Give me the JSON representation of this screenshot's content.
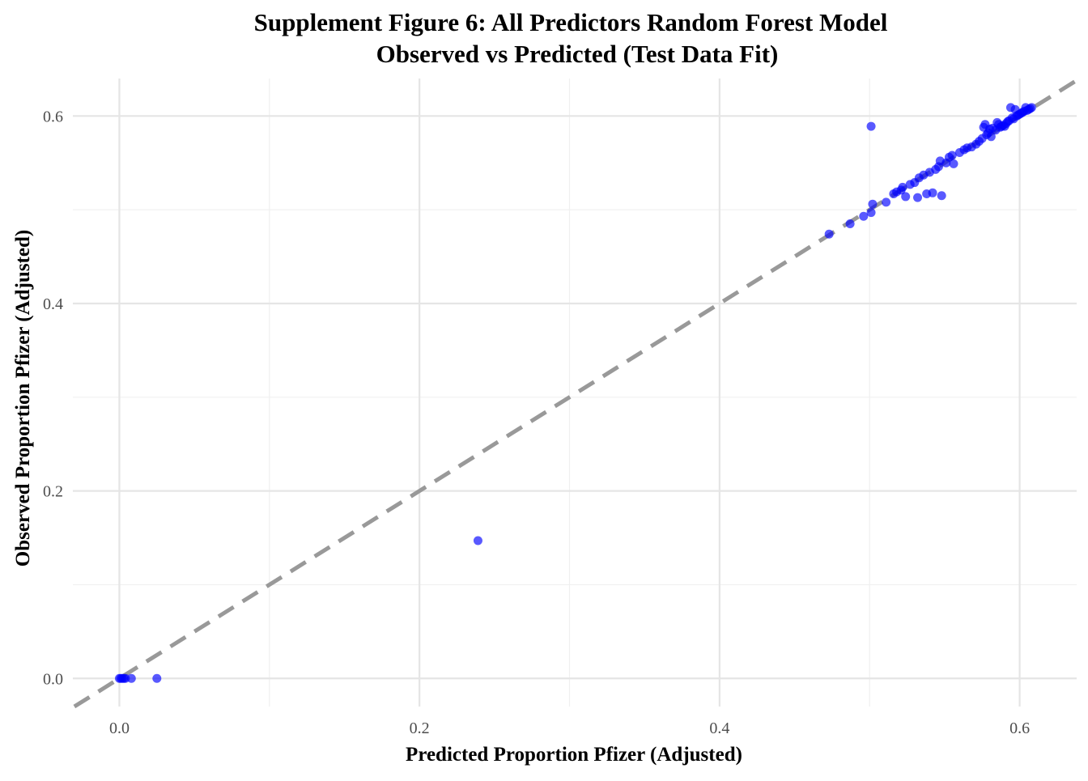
{
  "colors": {
    "points": "#0000FF",
    "reference_line": "#999999",
    "grid_major": "#e5e5e5",
    "grid_minor": "#f0f0f0",
    "background": "#ffffff"
  },
  "chart_data": {
    "type": "scatter",
    "title": "Supplement Figure 6: All Predictors Random Forest Model",
    "subtitle": "Observed vs Predicted (Test Data Fit)",
    "xlabel": "Predicted Proportion Pfizer (Adjusted)",
    "ylabel": "Observed Proportion Pfizer (Adjusted)",
    "xlim": [
      -0.031,
      0.638
    ],
    "ylim": [
      -0.03,
      0.64
    ],
    "x_ticks": [
      0.0,
      0.2,
      0.4,
      0.6
    ],
    "y_ticks": [
      0.0,
      0.2,
      0.4,
      0.6
    ],
    "x_tick_labels": [
      "0.0",
      "0.2",
      "0.4",
      "0.6"
    ],
    "y_tick_labels": [
      "0.0",
      "0.2",
      "0.4",
      "0.6"
    ],
    "grid": true,
    "reference_line": {
      "type": "identity",
      "style": "dashed",
      "slope": 1,
      "intercept": 0
    },
    "series": [
      {
        "points": [
          [
            0.0,
            0.0
          ],
          [
            0.001,
            0.0
          ],
          [
            0.002,
            0.0
          ],
          [
            0.003,
            0.0
          ],
          [
            0.004,
            0.0
          ],
          [
            0.008,
            0.0
          ],
          [
            0.025,
            0.0
          ],
          [
            0.239,
            0.147
          ],
          [
            0.473,
            0.474
          ],
          [
            0.487,
            0.485
          ],
          [
            0.496,
            0.493
          ],
          [
            0.501,
            0.497
          ],
          [
            0.502,
            0.506
          ],
          [
            0.501,
            0.589
          ],
          [
            0.511,
            0.508
          ],
          [
            0.516,
            0.517
          ],
          [
            0.518,
            0.519
          ],
          [
            0.521,
            0.521
          ],
          [
            0.522,
            0.524
          ],
          [
            0.524,
            0.514
          ],
          [
            0.527,
            0.527
          ],
          [
            0.53,
            0.529
          ],
          [
            0.532,
            0.513
          ],
          [
            0.533,
            0.534
          ],
          [
            0.536,
            0.537
          ],
          [
            0.538,
            0.517
          ],
          [
            0.54,
            0.54
          ],
          [
            0.542,
            0.518
          ],
          [
            0.544,
            0.543
          ],
          [
            0.546,
            0.546
          ],
          [
            0.548,
            0.515
          ],
          [
            0.547,
            0.552
          ],
          [
            0.551,
            0.55
          ],
          [
            0.553,
            0.556
          ],
          [
            0.555,
            0.558
          ],
          [
            0.556,
            0.549
          ],
          [
            0.56,
            0.561
          ],
          [
            0.563,
            0.564
          ],
          [
            0.565,
            0.566
          ],
          [
            0.568,
            0.567
          ],
          [
            0.571,
            0.57
          ],
          [
            0.573,
            0.573
          ],
          [
            0.575,
            0.576
          ],
          [
            0.576,
            0.588
          ],
          [
            0.577,
            0.591
          ],
          [
            0.578,
            0.58
          ],
          [
            0.579,
            0.582
          ],
          [
            0.58,
            0.586
          ],
          [
            0.581,
            0.578
          ],
          [
            0.582,
            0.587
          ],
          [
            0.584,
            0.585
          ],
          [
            0.585,
            0.593
          ],
          [
            0.586,
            0.591
          ],
          [
            0.587,
            0.588
          ],
          [
            0.588,
            0.589
          ],
          [
            0.589,
            0.59
          ],
          [
            0.59,
            0.589
          ],
          [
            0.591,
            0.592
          ],
          [
            0.592,
            0.594
          ],
          [
            0.593,
            0.595
          ],
          [
            0.594,
            0.609
          ],
          [
            0.595,
            0.598
          ],
          [
            0.596,
            0.597
          ],
          [
            0.597,
            0.607
          ],
          [
            0.598,
            0.6
          ],
          [
            0.599,
            0.601
          ],
          [
            0.6,
            0.602
          ],
          [
            0.601,
            0.603
          ],
          [
            0.602,
            0.604
          ],
          [
            0.603,
            0.605
          ],
          [
            0.604,
            0.609
          ],
          [
            0.605,
            0.606
          ],
          [
            0.606,
            0.607
          ],
          [
            0.607,
            0.608
          ],
          [
            0.608,
            0.609
          ]
        ]
      }
    ]
  }
}
